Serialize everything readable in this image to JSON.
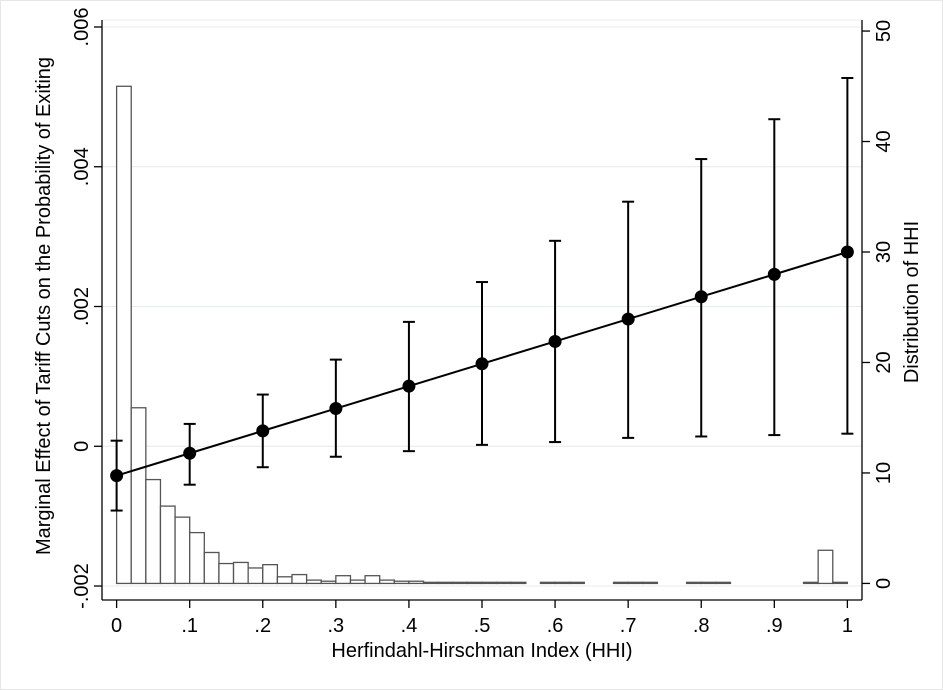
{
  "chart_data": {
    "type": "line",
    "xlabel": "Herfindahl-Hirschman Index (HHI)",
    "ylabel_left": "Marginal Effect of Tariff Cuts on the Probability of Exiting",
    "ylabel_right": "Distribution of HHI",
    "x_ticks": [
      0,
      0.1,
      0.2,
      0.3,
      0.4,
      0.5,
      0.6,
      0.7,
      0.8,
      0.9,
      1
    ],
    "x_tick_labels": [
      "0",
      ".1",
      ".2",
      ".3",
      ".4",
      ".5",
      ".6",
      ".7",
      ".8",
      ".9",
      "1"
    ],
    "xlim": [
      -0.02,
      1.02
    ],
    "y_left_ticks": [
      -0.002,
      0,
      0.002,
      0.004,
      0.006
    ],
    "y_left_tick_labels": [
      "-.002",
      "0",
      ".002",
      ".004",
      ".006"
    ],
    "y_left_lim": [
      -0.0022,
      0.0061
    ],
    "y_right_ticks": [
      0,
      10,
      20,
      30,
      40,
      50
    ],
    "y_right_tick_labels": [
      "0",
      "10",
      "20",
      "30",
      "40",
      "50"
    ],
    "y_right_lim": [
      -1.5,
      51
    ],
    "grid": "horizontal",
    "series": [
      {
        "type": "line-with-errorbars",
        "color": "#000000",
        "x": [
          0,
          0.1,
          0.2,
          0.3,
          0.4,
          0.5,
          0.6,
          0.7,
          0.8,
          0.9,
          1
        ],
        "y": [
          -0.00042,
          -0.0001,
          0.00022,
          0.00054,
          0.00086,
          0.00118,
          0.0015,
          0.00182,
          0.00214,
          0.00246,
          0.00278
        ],
        "ci_low": [
          -0.00092,
          -0.00055,
          -0.0003,
          -0.00015,
          -7e-05,
          2e-05,
          6e-05,
          0.00012,
          0.00014,
          0.00016,
          0.00018
        ],
        "ci_high": [
          8e-05,
          0.00032,
          0.00074,
          0.00124,
          0.00178,
          0.00235,
          0.00294,
          0.0035,
          0.00411,
          0.00468,
          0.00527
        ]
      },
      {
        "type": "histogram",
        "axis": "right",
        "color": "#555555",
        "bin_width": 0.02,
        "x": [
          0.01,
          0.03,
          0.05,
          0.07,
          0.09,
          0.11,
          0.13,
          0.15,
          0.17,
          0.19,
          0.21,
          0.23,
          0.25,
          0.27,
          0.29,
          0.31,
          0.33,
          0.35,
          0.37,
          0.39,
          0.41,
          0.43,
          0.45,
          0.47,
          0.49,
          0.51,
          0.53,
          0.55,
          0.59,
          0.61,
          0.63,
          0.69,
          0.71,
          0.73,
          0.79,
          0.81,
          0.83,
          0.95,
          0.97,
          0.99
        ],
        "y": [
          45,
          15.9,
          9.4,
          7.0,
          6.0,
          4.6,
          2.8,
          1.8,
          1.9,
          1.4,
          1.7,
          0.6,
          0.8,
          0.3,
          0.2,
          0.7,
          0.3,
          0.7,
          0.3,
          0.2,
          0.2,
          0.1,
          0.1,
          0.1,
          0.1,
          0.1,
          0.1,
          0.1,
          0.1,
          0.1,
          0.1,
          0.1,
          0.1,
          0.1,
          0.1,
          0.1,
          0.1,
          0.1,
          3.0,
          0.1
        ]
      }
    ],
    "legend": "hidden"
  }
}
